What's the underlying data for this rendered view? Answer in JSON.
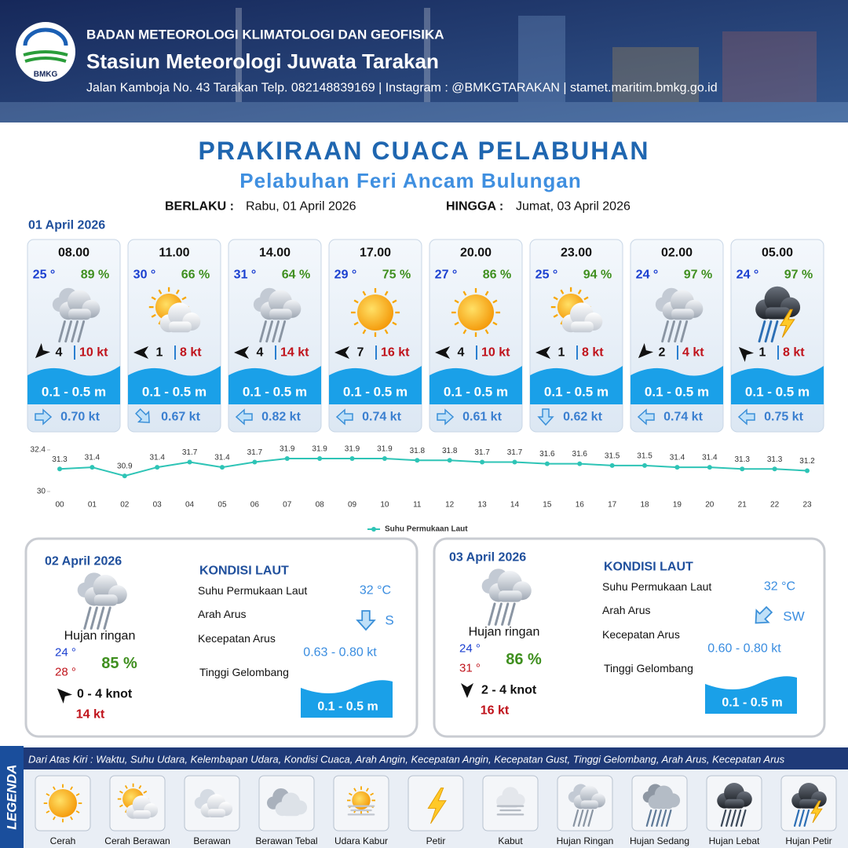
{
  "header": {
    "logo": "BMKG",
    "agency": "BADAN METEOROLOGI KLIMATOLOGI DAN GEOFISIKA",
    "station": "Stasiun Meteorologi Juwata Tarakan",
    "contact": "Jalan Kamboja No. 43 Tarakan  Telp. 082148839169 | Instagram : @BMKGTARAKAN | stamet.maritim.bmkg.go.id"
  },
  "title": "PRAKIRAAN CUACA PELABUHAN",
  "subtitle": "Pelabuhan Feri Ancam Bulungan",
  "validity": {
    "from_label": "BERLAKU :",
    "from": "Rabu, 01 April 2026",
    "to_label": "HINGGA :",
    "to": "Jumat, 03 April 2026"
  },
  "day1": {
    "date": "01 April 2026",
    "forecasts": [
      {
        "time": "08.00",
        "temp": "25 °",
        "humidity": "89 %",
        "icon": "hujan-ringan",
        "wind_dir": "SW",
        "wind": "4",
        "gust": "10 kt",
        "wave": "0.1 - 0.5 m",
        "current_dir": "E",
        "current": "0.70 kt"
      },
      {
        "time": "11.00",
        "temp": "30 °",
        "humidity": "66 %",
        "icon": "cerah-berawan",
        "wind_dir": "W",
        "wind": "1",
        "gust": "8 kt",
        "wave": "0.1 - 0.5 m",
        "current_dir": "SE",
        "current": "0.67 kt"
      },
      {
        "time": "14.00",
        "temp": "31 °",
        "humidity": "64 %",
        "icon": "hujan-ringan",
        "wind_dir": "W",
        "wind": "4",
        "gust": "14 kt",
        "wave": "0.1 - 0.5 m",
        "current_dir": "W",
        "current": "0.82 kt"
      },
      {
        "time": "17.00",
        "temp": "29 °",
        "humidity": "75 %",
        "icon": "cerah",
        "wind_dir": "W",
        "wind": "7",
        "gust": "16 kt",
        "wave": "0.1 - 0.5 m",
        "current_dir": "W",
        "current": "0.74 kt"
      },
      {
        "time": "20.00",
        "temp": "27 °",
        "humidity": "86 %",
        "icon": "cerah",
        "wind_dir": "W",
        "wind": "4",
        "gust": "10 kt",
        "wave": "0.1 - 0.5 m",
        "current_dir": "E",
        "current": "0.61 kt"
      },
      {
        "time": "23.00",
        "temp": "25 °",
        "humidity": "94 %",
        "icon": "cerah-berawan",
        "wind_dir": "W",
        "wind": "1",
        "gust": "8 kt",
        "wave": "0.1 - 0.5 m",
        "current_dir": "S",
        "current": "0.62 kt"
      },
      {
        "time": "02.00",
        "temp": "24 °",
        "humidity": "97 %",
        "icon": "hujan-ringan",
        "wind_dir": "SW",
        "wind": "2",
        "gust": "4 kt",
        "wave": "0.1 - 0.5 m",
        "current_dir": "W",
        "current": "0.74 kt"
      },
      {
        "time": "05.00",
        "temp": "24 °",
        "humidity": "97 %",
        "icon": "hujan-petir",
        "wind_dir": "NW",
        "wind": "1",
        "gust": "8 kt",
        "wave": "0.1 - 0.5 m",
        "current_dir": "W",
        "current": "0.75 kt"
      }
    ]
  },
  "chart_data": {
    "type": "line",
    "categories": [
      "00",
      "01",
      "02",
      "03",
      "04",
      "05",
      "06",
      "07",
      "08",
      "09",
      "10",
      "11",
      "12",
      "13",
      "14",
      "15",
      "16",
      "17",
      "18",
      "19",
      "20",
      "21",
      "22",
      "23"
    ],
    "series": [
      {
        "name": "Suhu Permukaan Laut",
        "color": "#2ec4b6",
        "values": [
          31.3,
          31.4,
          30.9,
          31.4,
          31.7,
          31.4,
          31.7,
          31.9,
          31.9,
          31.9,
          31.9,
          31.8,
          31.8,
          31.7,
          31.7,
          31.6,
          31.6,
          31.5,
          31.5,
          31.4,
          31.4,
          31.3,
          31.3,
          31.2
        ]
      }
    ],
    "ylim": [
      30,
      32.4
    ],
    "yticks": [
      30,
      32.4
    ]
  },
  "days": [
    {
      "date": "02 April 2026",
      "icon": "hujan-ringan",
      "condition": "Hujan ringan",
      "temp_min": "24 °",
      "temp_max": "28 °",
      "humidity": "85 %",
      "wind_dir": "NW",
      "wind": "0  - 4 knot",
      "gust": "14 kt",
      "sea": {
        "heading": "KONDISI LAUT",
        "sst_label": "Suhu Permukaan Laut",
        "sst": "32 °C",
        "current_dir_label": "Arah Arus",
        "current_dir": "S",
        "current_speed_label": "Kecepatan Arus",
        "current_speed": "0.63 - 0.80 kt",
        "wave_label": "Tinggi Gelombang",
        "wave": "0.1 - 0.5 m"
      }
    },
    {
      "date": "03 April 2026",
      "icon": "hujan-ringan",
      "condition": "Hujan ringan",
      "temp_min": "24 °",
      "temp_max": "31 °",
      "humidity": "86 %",
      "wind_dir": "S",
      "wind": "2 - 4 knot",
      "gust": "16 kt",
      "sea": {
        "heading": "KONDISI LAUT",
        "sst_label": "Suhu Permukaan Laut",
        "sst": "32 °C",
        "current_dir_label": "Arah Arus",
        "current_dir": "SW",
        "current_speed_label": "Kecepatan Arus",
        "current_speed": "0.60 - 0.80 kt",
        "wave_label": "Tinggi Gelombang",
        "wave": "0.1 - 0.5 m"
      }
    }
  ],
  "legend": {
    "title": "LEGENDA",
    "note": "Dari Atas Kiri : Waktu, Suhu Udara, Kelembapan Udara, Kondisi Cuaca, Arah Angin, Kecepatan Angin, Kecepatan Gust, Tinggi Gelombang, Arah Arus, Kecepatan Arus",
    "items": [
      {
        "label": "Cerah",
        "icon": "cerah"
      },
      {
        "label": "Cerah Berawan",
        "icon": "cerah-berawan"
      },
      {
        "label": "Berawan",
        "icon": "berawan"
      },
      {
        "label": "Berawan Tebal",
        "icon": "berawan-tebal"
      },
      {
        "label": "Udara Kabur",
        "icon": "udara-kabur"
      },
      {
        "label": "Petir",
        "icon": "petir"
      },
      {
        "label": "Kabut",
        "icon": "kabut"
      },
      {
        "label": "Hujan Ringan",
        "icon": "hujan-ringan"
      },
      {
        "label": "Hujan Sedang",
        "icon": "hujan-sedang"
      },
      {
        "label": "Hujan Lebat",
        "icon": "hujan-lebat"
      },
      {
        "label": "Hujan Petir",
        "icon": "hujan-petir"
      }
    ]
  }
}
